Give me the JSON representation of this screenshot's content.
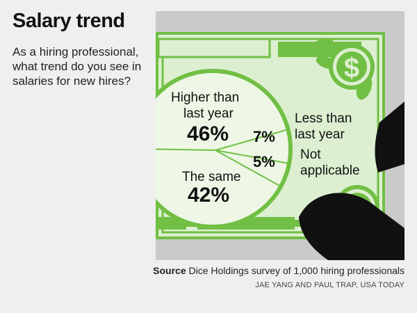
{
  "header": {
    "title": "Salary trend",
    "question": "As a hiring professional, what trend do you see in salaries for new hires?"
  },
  "footer": {
    "source_label": "Source",
    "source_text": "Dice Holdings survey of 1,000 hiring professionals",
    "credit": "JAE YANG AND PAUL TRAP, USA TODAY"
  },
  "colors": {
    "green": "#71bf44",
    "light_green": "#dcefd0",
    "pale_green": "#eef7e6",
    "black": "#111111",
    "gray_panel": "#c9cac9"
  },
  "icons": [
    "dollar-coin-icon",
    "hand-thumb-icon"
  ],
  "chart_data": {
    "type": "pie",
    "slices": [
      {
        "label": "Higher than last year",
        "value": 46,
        "display": "46%"
      },
      {
        "label": "Less than last year",
        "value": 7,
        "display": "7%"
      },
      {
        "label": "Not applicable",
        "value": 5,
        "display": "5%"
      },
      {
        "label": "The same",
        "value": 42,
        "display": "42%"
      }
    ],
    "labels": {
      "higher_line1": "Higher than",
      "higher_line2": "last year",
      "higher_pct": "46%",
      "less_line1": "Less than",
      "less_line2": "last year",
      "less_pct": "7%",
      "na_line1": "Not",
      "na_line2": "applicable",
      "na_pct": "5%",
      "same_line1": "The same",
      "same_pct": "42%"
    }
  }
}
